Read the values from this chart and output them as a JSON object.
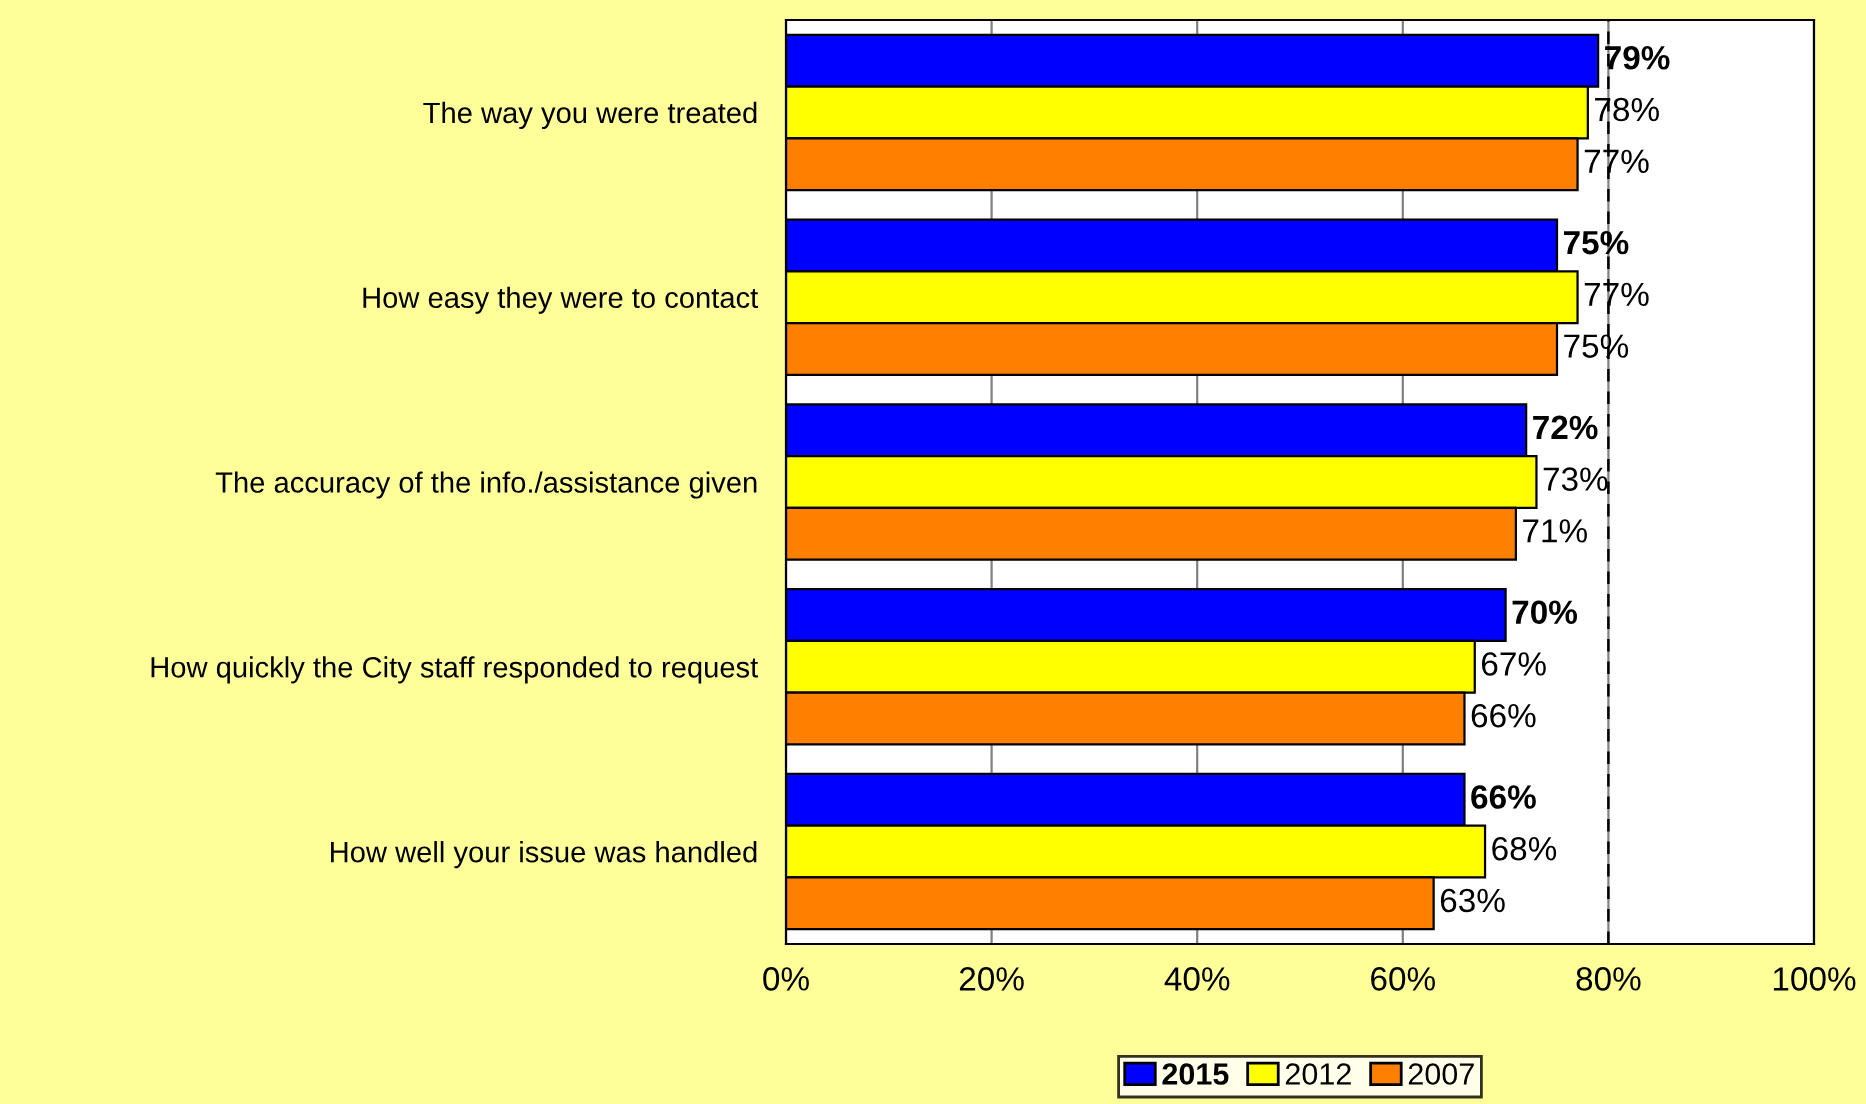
{
  "chart_data": {
    "type": "bar",
    "orientation": "horizontal",
    "categories": [
      "The way you were treated",
      "How easy they were to contact",
      "The accuracy of the info./assistance given",
      "How quickly the City staff responded to request",
      "How well your issue was handled"
    ],
    "series": [
      {
        "name": "2015",
        "color": "#0000ff",
        "values": [
          79,
          75,
          72,
          70,
          66
        ],
        "value_labels": [
          "79%",
          "75%",
          "72%",
          "70%",
          "66%"
        ]
      },
      {
        "name": "2012",
        "color": "#ffff00",
        "values": [
          78,
          77,
          73,
          67,
          68
        ],
        "value_labels": [
          "78%",
          "77%",
          "73%",
          "67%",
          "68%"
        ]
      },
      {
        "name": "2007",
        "color": "#ff8000",
        "values": [
          77,
          75,
          71,
          66,
          63
        ],
        "value_labels": [
          "77%",
          "75%",
          "71%",
          "66%",
          "63%"
        ]
      }
    ],
    "xlim": [
      0,
      100
    ],
    "xticks": [
      {
        "value": 0,
        "label": "0%"
      },
      {
        "value": 20,
        "label": "20%"
      },
      {
        "value": 40,
        "label": "40%"
      },
      {
        "value": 60,
        "label": "60%"
      },
      {
        "value": 80,
        "label": "80%"
      },
      {
        "value": 100,
        "label": "100%"
      }
    ],
    "grid": "x",
    "ref_lines": [
      {
        "axis": "x",
        "value": 80,
        "line_style": "dashed",
        "color": "#000000"
      }
    ],
    "legend": "bottom"
  }
}
